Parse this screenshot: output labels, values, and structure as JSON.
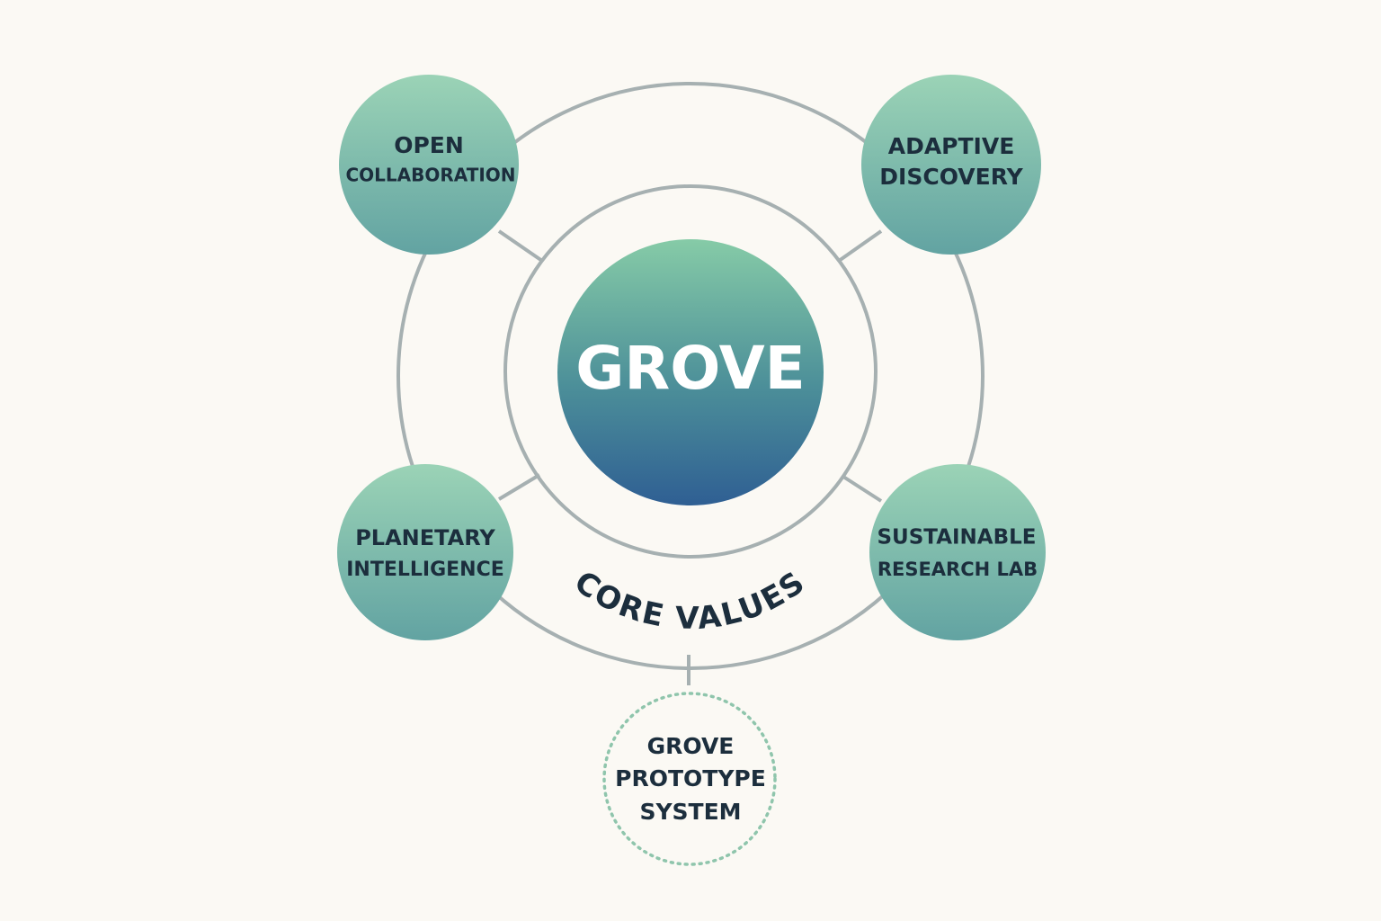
{
  "center": {
    "label": "GROVE"
  },
  "arc_label": "CORE VALUES",
  "values": [
    {
      "line1": "OPEN",
      "line2": "COLLABORATION"
    },
    {
      "line1": "ADAPTIVE",
      "line2": "DISCOVERY"
    },
    {
      "line1": "PLANETARY",
      "line2": "INTELLIGENCE"
    },
    {
      "line1": "SUSTAINABLE",
      "line2": "RESEARCH LAB"
    }
  ],
  "prototype": {
    "line1": "GROVE",
    "line2": "PROTOTYPE",
    "line3": "SYSTEM"
  },
  "colors": {
    "background": "#fbf9f4",
    "node_top": "#9bd3b6",
    "node_bottom": "#62a3a2",
    "center_top": "#86cba7",
    "center_bottom": "#2f5f93",
    "ring": "#a6b0b1",
    "dotted": "#8fc5ac",
    "text_dark": "#1c2e3d"
  }
}
